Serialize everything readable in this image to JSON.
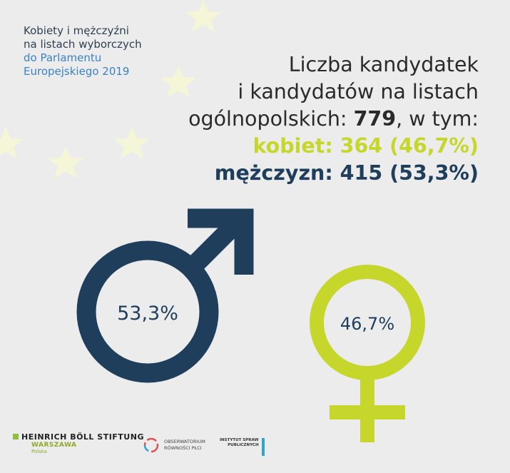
{
  "subtitle": {
    "line1": "Kobiety i mężczyźni",
    "line2": "na listach wyborczych",
    "line3": "do Parlamentu",
    "line4": "Europejskiego 2019"
  },
  "headline": {
    "line1": "Liczba kandydatek",
    "line2": "i kandydatów na listach",
    "line3_pre": "ogólnopolskich: ",
    "line3_total": "779",
    "line3_post": ", w tym:",
    "women": "kobiet: 364 (46,7%)",
    "men": "mężczyzn: 415 (53,3%)"
  },
  "chart_data": {
    "type": "pie",
    "categories": [
      "mężczyzn",
      "kobiet"
    ],
    "values": [
      415,
      364
    ],
    "percent_labels": [
      "53,3%",
      "46,7%"
    ],
    "total": 779
  },
  "colors": {
    "men": "#1e3e5c",
    "women": "#c6d62b",
    "background": "#ececec"
  },
  "icons": {
    "men_symbol": "mars-icon",
    "women_symbol": "venus-icon"
  },
  "logos": {
    "hb_name": "HEINRICH BÖLL STIFTUNG",
    "hb_city": "WARSZAWA",
    "hb_country": "Polska",
    "obs_line1": "OBSERWATORIUM",
    "obs_line2": "RÓWNOŚCI PŁCI",
    "isp_line1": "INSTYTUT SPRAW",
    "isp_line2": "PUBLICZNYCH"
  }
}
